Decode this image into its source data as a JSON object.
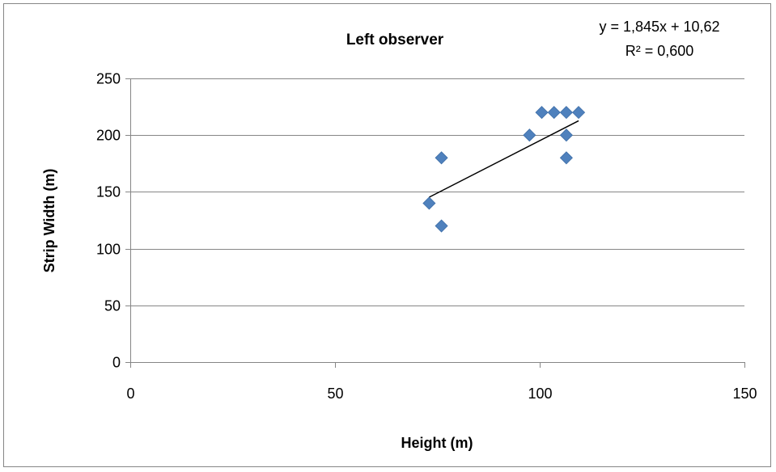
{
  "chart_data": {
    "type": "scatter",
    "title": "Left observer",
    "xlabel": "Height (m)",
    "ylabel": "Strip Width (m)",
    "xlim": [
      0,
      150
    ],
    "ylim": [
      0,
      250
    ],
    "xticks": [
      0,
      50,
      100,
      150
    ],
    "yticks": [
      0,
      50,
      100,
      150,
      200,
      250
    ],
    "grid": "horizontal",
    "marker": "diamond",
    "marker_color": "#4F81BD",
    "trendline_color": "#000000",
    "points": [
      {
        "x": 73,
        "y": 140
      },
      {
        "x": 76,
        "y": 180
      },
      {
        "x": 76,
        "y": 120
      },
      {
        "x": 97.5,
        "y": 200
      },
      {
        "x": 100.5,
        "y": 220
      },
      {
        "x": 103.5,
        "y": 220
      },
      {
        "x": 106.5,
        "y": 220
      },
      {
        "x": 106.5,
        "y": 200
      },
      {
        "x": 106.5,
        "y": 180
      },
      {
        "x": 109.5,
        "y": 220
      }
    ],
    "trendline": {
      "type": "linear",
      "slope": 1.845,
      "intercept": 10.62,
      "x_range": [
        73,
        109.5
      ],
      "equation_label": "y = 1,845x + 10,62",
      "r2_label": "R² = 0,600"
    }
  }
}
